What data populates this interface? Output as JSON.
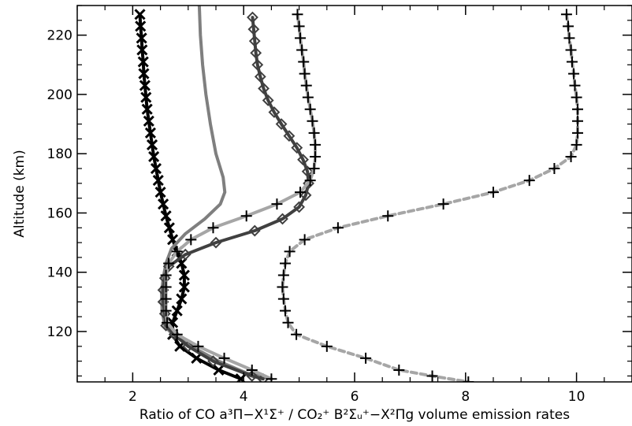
{
  "chart_data": {
    "type": "line",
    "title": "",
    "xlabel": "Ratio of CO a³Π−X¹Σ⁺ / CO₂⁺ B²Σᵤ⁺−X²Πg volume emission rates",
    "ylabel": "Altitude (km)",
    "xlim": [
      1,
      11
    ],
    "ylim": [
      103,
      230
    ],
    "x_ticks": [
      2,
      4,
      6,
      8,
      10
    ],
    "y_ticks": [
      120,
      140,
      160,
      180,
      200,
      220
    ],
    "grid": false,
    "legend": "none",
    "series": [
      {
        "color": "#000000",
        "line_style": "solid",
        "marker": "x",
        "points": [
          [
            2.13,
            227
          ],
          [
            2.14,
            223
          ],
          [
            2.16,
            219
          ],
          [
            2.17,
            215
          ],
          [
            2.19,
            211
          ],
          [
            2.2,
            207
          ],
          [
            2.22,
            203
          ],
          [
            2.24,
            199
          ],
          [
            2.26,
            195
          ],
          [
            2.29,
            191
          ],
          [
            2.32,
            187
          ],
          [
            2.35,
            183
          ],
          [
            2.38,
            179
          ],
          [
            2.42,
            175
          ],
          [
            2.46,
            171
          ],
          [
            2.5,
            167
          ],
          [
            2.55,
            163
          ],
          [
            2.6,
            159
          ],
          [
            2.66,
            155
          ],
          [
            2.72,
            151
          ],
          [
            2.8,
            147
          ],
          [
            2.88,
            143
          ],
          [
            2.93,
            139
          ],
          [
            2.93,
            135
          ],
          [
            2.88,
            131
          ],
          [
            2.8,
            127
          ],
          [
            2.72,
            123
          ],
          [
            2.72,
            119
          ],
          [
            2.85,
            115
          ],
          [
            3.15,
            111
          ],
          [
            3.55,
            107
          ],
          [
            3.95,
            104
          ]
        ]
      },
      {
        "color": "#7f7f7f",
        "line_style": "solid",
        "marker": "none",
        "points": [
          [
            3.2,
            230
          ],
          [
            3.22,
            220
          ],
          [
            3.26,
            210
          ],
          [
            3.32,
            200
          ],
          [
            3.4,
            190
          ],
          [
            3.5,
            180
          ],
          [
            3.63,
            172
          ],
          [
            3.66,
            167
          ],
          [
            3.58,
            163
          ],
          [
            3.3,
            158
          ],
          [
            2.95,
            153
          ],
          [
            2.7,
            148
          ],
          [
            2.6,
            143
          ],
          [
            2.55,
            138
          ],
          [
            2.52,
            133
          ],
          [
            2.53,
            127
          ],
          [
            2.58,
            122
          ],
          [
            2.72,
            119
          ],
          [
            3.05,
            115
          ],
          [
            3.55,
            110
          ],
          [
            4.05,
            106
          ],
          [
            4.5,
            104
          ]
        ]
      },
      {
        "color": "#404040",
        "line_style": "solid",
        "marker": "diamond",
        "points": [
          [
            4.16,
            226
          ],
          [
            4.18,
            222
          ],
          [
            4.2,
            218
          ],
          [
            4.22,
            214
          ],
          [
            4.25,
            210
          ],
          [
            4.3,
            206
          ],
          [
            4.36,
            202
          ],
          [
            4.44,
            198
          ],
          [
            4.55,
            194
          ],
          [
            4.68,
            190
          ],
          [
            4.82,
            186
          ],
          [
            4.96,
            182
          ],
          [
            5.07,
            178
          ],
          [
            5.15,
            174
          ],
          [
            5.17,
            170
          ],
          [
            5.12,
            166
          ],
          [
            5,
            162
          ],
          [
            4.7,
            158
          ],
          [
            4.2,
            154
          ],
          [
            3.5,
            150
          ],
          [
            2.95,
            146
          ],
          [
            2.65,
            142
          ],
          [
            2.58,
            138
          ],
          [
            2.55,
            134
          ],
          [
            2.55,
            130
          ],
          [
            2.58,
            126
          ],
          [
            2.6,
            122
          ],
          [
            2.75,
            119
          ],
          [
            3,
            115
          ],
          [
            3.45,
            110
          ],
          [
            4.15,
            105
          ],
          [
            4.35,
            104
          ]
        ]
      },
      {
        "color": "#a6a6a6",
        "line_style": "solid",
        "marker": "plus",
        "points": [
          [
            4.97,
            227
          ],
          [
            5,
            223
          ],
          [
            5.02,
            219
          ],
          [
            5.05,
            215
          ],
          [
            5.08,
            211
          ],
          [
            5.1,
            207
          ],
          [
            5.13,
            203
          ],
          [
            5.16,
            199
          ],
          [
            5.2,
            195
          ],
          [
            5.24,
            191
          ],
          [
            5.27,
            187
          ],
          [
            5.29,
            183
          ],
          [
            5.29,
            179
          ],
          [
            5.27,
            175
          ],
          [
            5.2,
            171
          ],
          [
            5.02,
            167
          ],
          [
            4.6,
            163
          ],
          [
            4.05,
            159
          ],
          [
            3.45,
            155
          ],
          [
            3.05,
            151
          ],
          [
            2.8,
            147
          ],
          [
            2.65,
            143
          ],
          [
            2.6,
            139
          ],
          [
            2.6,
            135
          ],
          [
            2.6,
            131
          ],
          [
            2.6,
            127
          ],
          [
            2.62,
            123
          ],
          [
            2.8,
            119
          ],
          [
            3.18,
            115
          ],
          [
            3.65,
            111
          ],
          [
            4.15,
            107
          ],
          [
            4.5,
            104
          ]
        ]
      },
      {
        "color": "#a6a6a6",
        "line_style": "dashed",
        "marker": "plus",
        "points": [
          [
            9.82,
            227
          ],
          [
            9.85,
            223
          ],
          [
            9.87,
            219
          ],
          [
            9.9,
            215
          ],
          [
            9.92,
            211
          ],
          [
            9.95,
            207
          ],
          [
            9.97,
            203
          ],
          [
            10,
            199
          ],
          [
            10.02,
            195
          ],
          [
            10.02,
            191
          ],
          [
            10.02,
            187
          ],
          [
            10,
            183
          ],
          [
            9.9,
            179
          ],
          [
            9.6,
            175
          ],
          [
            9.15,
            171
          ],
          [
            8.5,
            167
          ],
          [
            7.6,
            163
          ],
          [
            6.6,
            159
          ],
          [
            5.7,
            155
          ],
          [
            5.1,
            151
          ],
          [
            4.83,
            147
          ],
          [
            4.75,
            143
          ],
          [
            4.72,
            139
          ],
          [
            4.7,
            135
          ],
          [
            4.72,
            131
          ],
          [
            4.75,
            127
          ],
          [
            4.8,
            123
          ],
          [
            4.95,
            119
          ],
          [
            5.5,
            115
          ],
          [
            6.2,
            111
          ],
          [
            6.8,
            107
          ],
          [
            7.4,
            105
          ],
          [
            8.05,
            103
          ]
        ]
      }
    ]
  }
}
